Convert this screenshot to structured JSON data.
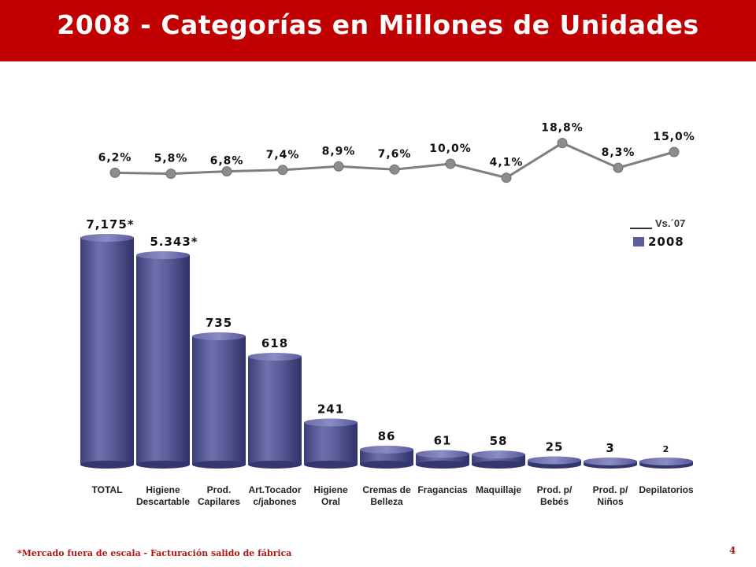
{
  "header": {
    "title": "2008 - Categorías en Millones de Unidades",
    "background_color": "#c00000"
  },
  "footer": {
    "note": "*Mercado fuera de escala - Facturación salido de fábrica",
    "page_number": "4"
  },
  "chart_data": {
    "type": "bar",
    "categories": [
      [
        "TOTAL"
      ],
      [
        "Higiene",
        "Descartable"
      ],
      [
        "Prod.",
        "Capilares"
      ],
      [
        "Art.Tocador",
        "c/jabones"
      ],
      [
        "Higiene",
        "Oral"
      ],
      [
        "Cremas de",
        "Belleza"
      ],
      [
        "Fragancias"
      ],
      [
        "Maquillaje"
      ],
      [
        "Prod. p/",
        "Bebés"
      ],
      [
        "Prod. p/",
        "Niños"
      ],
      [
        "Depilatorios"
      ]
    ],
    "series": [
      {
        "name": "2008",
        "values": [
          7175,
          5343,
          735,
          618,
          241,
          86,
          61,
          58,
          25,
          3,
          2
        ],
        "labels": [
          "7,175*",
          "5.343*",
          "735",
          "618",
          "241",
          "86",
          "61",
          "58",
          "25",
          "3",
          "2"
        ],
        "color": "#5b5d9a"
      },
      {
        "name": "Vs.´07",
        "type": "line",
        "values": [
          6.2,
          5.8,
          6.8,
          7.4,
          8.9,
          7.6,
          10.0,
          4.1,
          18.8,
          8.3,
          15.0
        ],
        "labels": [
          "6,2%",
          "5,8%",
          "6,8%",
          "7,4%",
          "8,9%",
          "7,6%",
          "10,0%",
          "4,1%",
          "18,8%",
          "8,3%",
          "15,0%"
        ],
        "color": "#808080"
      }
    ],
    "out_of_scale_categories": [
      "TOTAL",
      "Higiene Descartable"
    ],
    "legend": {
      "position": "right",
      "line_label": "Vs.´07",
      "bar_label": "2008"
    },
    "grid": false
  }
}
